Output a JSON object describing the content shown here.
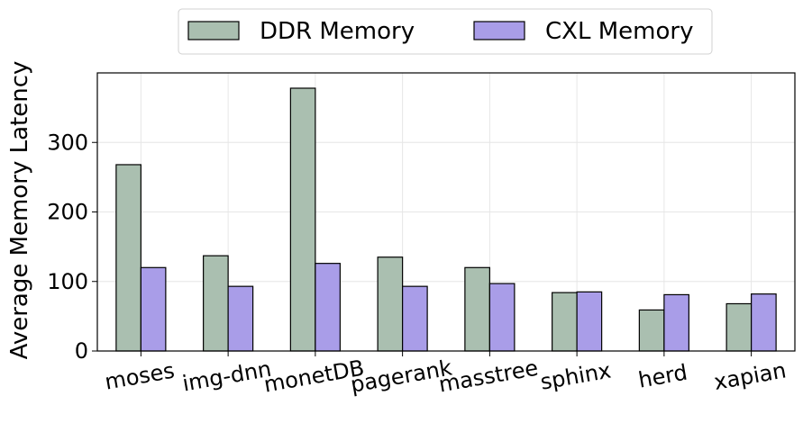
{
  "chart_data": {
    "type": "bar",
    "ylabel": "Average Memory Latency",
    "xlabel": "",
    "categories": [
      "moses",
      "img-dnn",
      "monetDB",
      "pagerank",
      "masstree",
      "sphinx",
      "herd",
      "xapian"
    ],
    "series": [
      {
        "name": "DDR Memory",
        "color": "#aabfb0",
        "values": [
          268,
          137,
          378,
          135,
          120,
          84,
          59,
          68
        ]
      },
      {
        "name": "CXL Memory",
        "color": "#a99de8",
        "values": [
          120,
          93,
          126,
          93,
          97,
          85,
          81,
          82
        ]
      }
    ],
    "ylim": [
      0,
      400
    ],
    "yticks": [
      0,
      100,
      200,
      300
    ],
    "grid": true,
    "legend": "top-center"
  }
}
